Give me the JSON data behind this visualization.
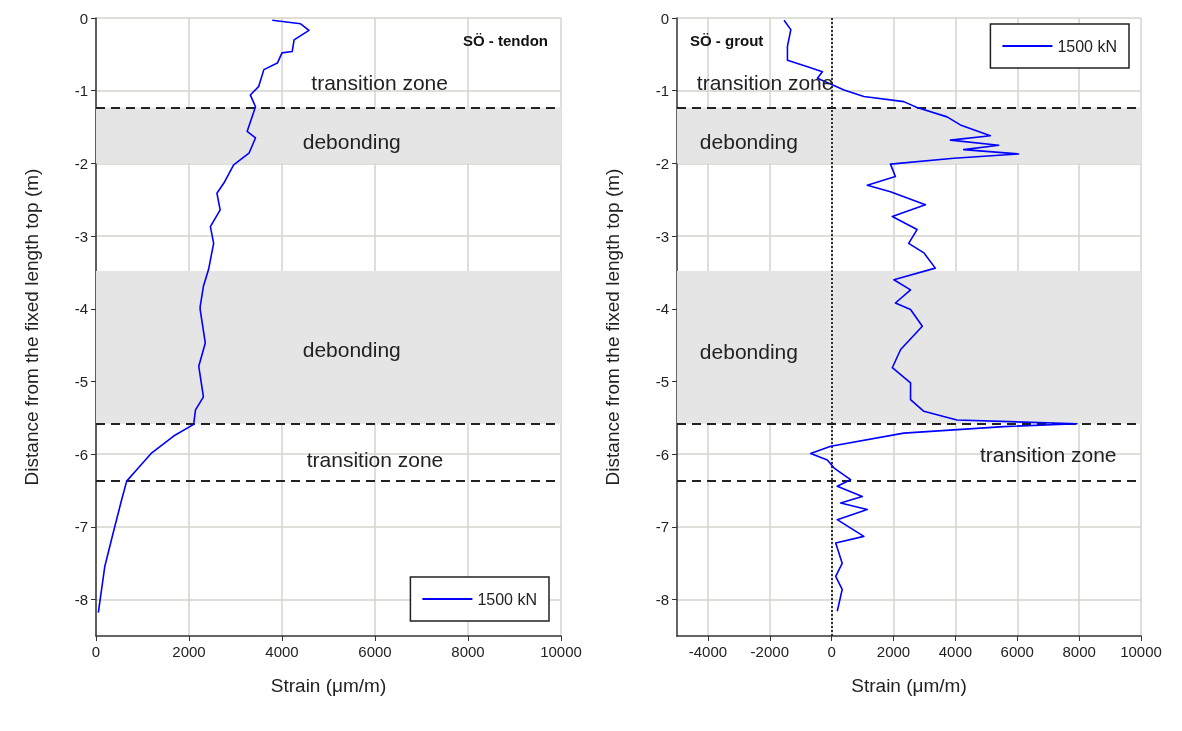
{
  "chart_data": [
    {
      "type": "line",
      "title": "SÖ - tendon",
      "xlabel": "Strain (μm/m)",
      "ylabel": "Distance from the fixed length top (m)",
      "xlim": [
        0,
        10000
      ],
      "xticks": [
        0,
        2000,
        4000,
        6000,
        8000,
        10000
      ],
      "ylim": [
        -8.5,
        0
      ],
      "yticks": [
        0,
        -1,
        -2,
        -3,
        -4,
        -5,
        -6,
        -7,
        -8
      ],
      "grid": true,
      "legend": "bottom right",
      "line_style": "solid",
      "marker": "none",
      "series": [
        {
          "name": "1500 kN",
          "color": "#0000ff",
          "x": [
            3790,
            4400,
            4580,
            4260,
            4220,
            4000,
            3900,
            3610,
            3500,
            3320,
            3430,
            3250,
            3430,
            3290,
            2960,
            2750,
            2600,
            2670,
            2460,
            2530,
            2420,
            2310,
            2240,
            2240,
            2350,
            2210,
            2310,
            2140,
            2100,
            1670,
            1200,
            880,
            660,
            550,
            370,
            190,
            50
          ],
          "values": [
            -0.03,
            -0.08,
            -0.17,
            -0.3,
            -0.46,
            -0.48,
            -0.62,
            -0.71,
            -0.94,
            -1.06,
            -1.22,
            -1.56,
            -1.65,
            -1.86,
            -2.02,
            -2.27,
            -2.41,
            -2.64,
            -2.87,
            -3.1,
            -3.46,
            -3.69,
            -3.97,
            -4.01,
            -4.47,
            -4.79,
            -5.21,
            -5.39,
            -5.59,
            -5.75,
            -5.98,
            -6.21,
            -6.37,
            -6.63,
            -7.08,
            -7.54,
            -8.18
          ]
        }
      ],
      "ref_lines": [
        {
          "axis": "y",
          "value": -1.23,
          "color": "#222222",
          "line_style": "dashed"
        },
        {
          "axis": "y",
          "value": -5.58,
          "color": "#222222",
          "line_style": "dashed"
        },
        {
          "axis": "y",
          "value": -6.37,
          "color": "#222222",
          "line_style": "dashed"
        }
      ],
      "bands": [
        {
          "axis": "y",
          "from": -2.0,
          "to": -1.23,
          "color": "#e5e5e5"
        },
        {
          "axis": "y",
          "from": -5.58,
          "to": -3.48,
          "color": "#e5e5e5"
        }
      ],
      "annotations": [
        "transition zone",
        "debonding",
        "debonding",
        "transition zone"
      ]
    },
    {
      "type": "line",
      "title": "SÖ - grout",
      "xlabel": "Strain (μm/m)",
      "ylabel": "Distance from the fixed length top (m)",
      "xlim": [
        -5000,
        10000
      ],
      "xticks": [
        -4000,
        -2000,
        0,
        2000,
        4000,
        6000,
        8000,
        10000
      ],
      "ylim": [
        -8.5,
        0
      ],
      "yticks": [
        0,
        -1,
        -2,
        -3,
        -4,
        -5,
        -6,
        -7,
        -8
      ],
      "grid": true,
      "legend": "top right",
      "line_style": "solid",
      "marker": "none",
      "series": [
        {
          "name": "1500 kN",
          "color": "#0000ff",
          "x": [
            -1540,
            -1320,
            -1430,
            -1430,
            -780,
            -300,
            -460,
            400,
            1040,
            2330,
            2760,
            3730,
            4160,
            5130,
            3840,
            5400,
            4270,
            6040,
            3950,
            1900,
            2060,
            1150,
            1900,
            3030,
            1960,
            2760,
            2490,
            2980,
            3350,
            2010,
            2550,
            2060,
            2550,
            2930,
            2230,
            1960,
            2550,
            2550,
            2980,
            4050,
            7930,
            5560,
            2330,
            -30,
            -680,
            -140,
            80,
            610,
            180,
            990,
            290,
            1150,
            180,
            1040,
            130,
            340,
            130,
            340,
            180
          ],
          "values": [
            -0.03,
            -0.16,
            -0.39,
            -0.58,
            -0.67,
            -0.74,
            -0.83,
            -0.99,
            -1.08,
            -1.15,
            -1.23,
            -1.36,
            -1.47,
            -1.62,
            -1.68,
            -1.75,
            -1.81,
            -1.87,
            -1.93,
            -2.01,
            -2.18,
            -2.3,
            -2.39,
            -2.57,
            -2.73,
            -2.91,
            -3.1,
            -3.23,
            -3.44,
            -3.6,
            -3.74,
            -3.92,
            -4.01,
            -4.24,
            -4.56,
            -4.81,
            -5.02,
            -5.25,
            -5.41,
            -5.53,
            -5.58,
            -5.62,
            -5.71,
            -5.89,
            -5.99,
            -6.08,
            -6.19,
            -6.35,
            -6.44,
            -6.58,
            -6.67,
            -6.76,
            -6.9,
            -7.13,
            -7.22,
            -7.5,
            -7.68,
            -7.86,
            -8.16
          ]
        }
      ],
      "ref_lines": [
        {
          "axis": "y",
          "value": -1.23,
          "color": "#222222",
          "line_style": "dashed"
        },
        {
          "axis": "y",
          "value": -5.58,
          "color": "#222222",
          "line_style": "dashed"
        },
        {
          "axis": "y",
          "value": -6.37,
          "color": "#222222",
          "line_style": "dashed"
        },
        {
          "axis": "x",
          "value": 0,
          "color": "#222222",
          "line_style": "dotted"
        }
      ],
      "bands": [
        {
          "axis": "y",
          "from": -2.0,
          "to": -1.23,
          "color": "#e5e5e5"
        },
        {
          "axis": "y",
          "from": -5.58,
          "to": -3.48,
          "color": "#e5e5e5"
        }
      ],
      "annotations": [
        "transition zone",
        "debonding",
        "debonding",
        "transition zone"
      ]
    }
  ]
}
